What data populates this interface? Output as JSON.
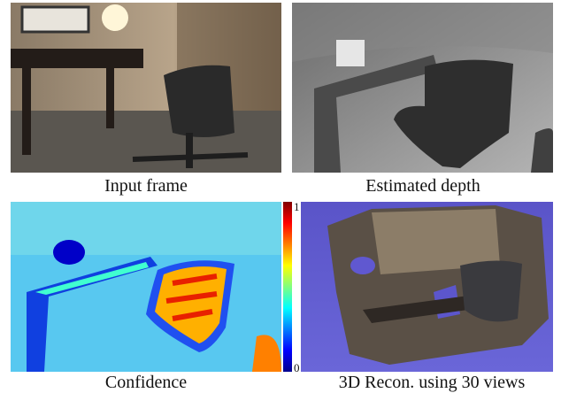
{
  "panels": [
    {
      "caption": "Input frame"
    },
    {
      "caption": "Estimated depth"
    },
    {
      "caption": "Confidence"
    },
    {
      "caption": "3D Recon. using 30 views"
    }
  ],
  "colorbar": {
    "top_label": "1",
    "bottom_label": "0"
  }
}
